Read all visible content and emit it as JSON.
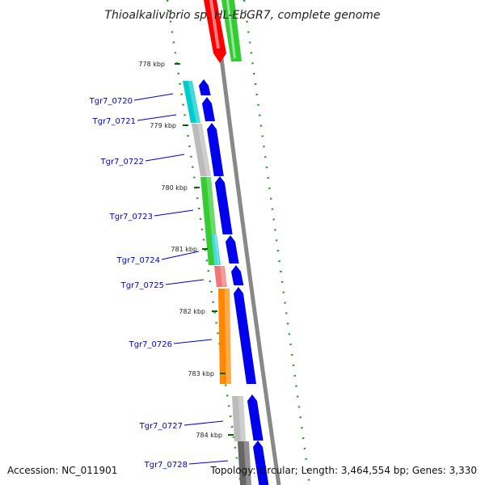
{
  "title": "Thioalkalivibrio sp. HL-EbGR7, complete genome",
  "footer": {
    "accession": "Accession: NC_011901",
    "topology": "Topology: circular; Length: 3,464,554 bp; Genes: 3,330"
  },
  "colors": {
    "label_text": "#0000cc",
    "label_line": "#0000cc",
    "tick_mark": "#006600",
    "tick_dots": "#339933",
    "backbone": "#888888",
    "gene_arrow": "#0000ee"
  },
  "ticks": [
    "778 kbp",
    "779 kbp",
    "780 kbp",
    "781 kbp",
    "782 kbp",
    "783 kbp",
    "784 kbp"
  ],
  "genes": [
    {
      "label": "Tgr7_0720",
      "color": "#00cccc"
    },
    {
      "label": "Tgr7_0721",
      "color": "#00cccc"
    },
    {
      "label": "Tgr7_0722",
      "color": "#bbbbbb"
    },
    {
      "label": "Tgr7_0723",
      "color": "#33cc33"
    },
    {
      "label": "Tgr7_0724",
      "color": "#00cccc"
    },
    {
      "label": "Tgr7_0725",
      "color": "#ee7777"
    },
    {
      "label": "Tgr7_0726",
      "color": "#ff8800"
    },
    {
      "label": "Tgr7_0727",
      "color": "#bbbbbb"
    },
    {
      "label": "Tgr7_0728",
      "color": "#666666"
    }
  ],
  "top_segments": [
    {
      "color": "#ff0000"
    },
    {
      "color": "#33cc33"
    }
  ]
}
